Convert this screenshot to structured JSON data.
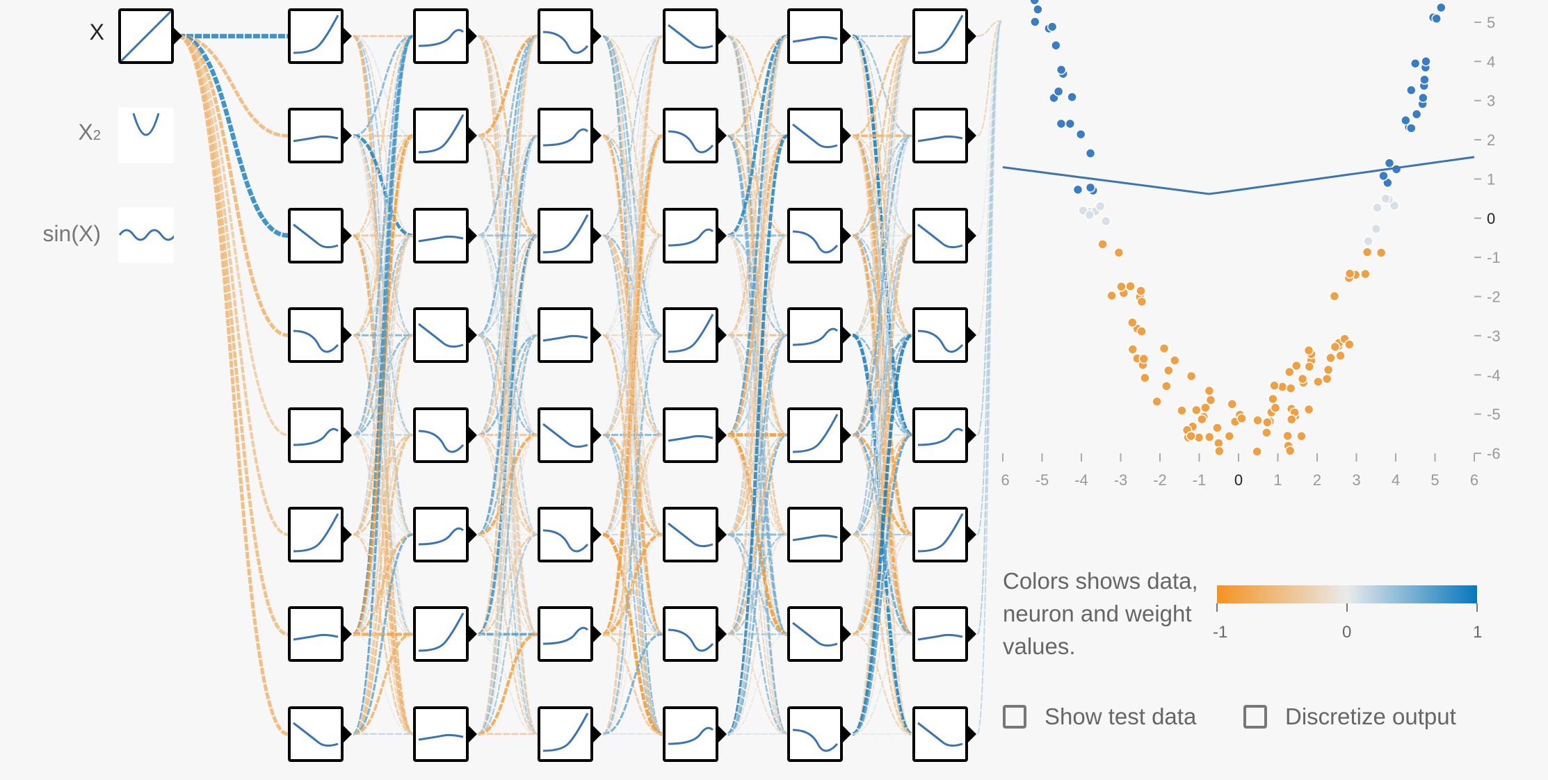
{
  "features": [
    {
      "label": "X",
      "active": true,
      "icon": "linear-icon"
    },
    {
      "label": "X",
      "sup": "2",
      "active": false,
      "icon": "parabola-icon"
    },
    {
      "label": "sin(X)",
      "active": false,
      "icon": "sine-icon"
    }
  ],
  "network": {
    "layers": 6,
    "neurons_per_layer": 8
  },
  "output_plot": {
    "x_ticks": [
      "-6",
      "-5",
      "-4",
      "-3",
      "-2",
      "-1",
      "0",
      "1",
      "2",
      "3",
      "4",
      "5",
      "6"
    ],
    "y_ticks": [
      "5",
      "4",
      "3",
      "2",
      "1",
      "0",
      "-1",
      "-2",
      "-3",
      "-4",
      "-5",
      "-6"
    ],
    "x_range": [
      -6,
      6
    ],
    "y_range": [
      -6,
      5.5
    ]
  },
  "legend": {
    "text": "Colors shows data, neuron and weight values.",
    "scale_min": "-1",
    "scale_mid": "0",
    "scale_max": "1",
    "colors": {
      "negative": "#f59322",
      "neutral": "#e8eaeb",
      "positive": "#0877bd"
    }
  },
  "options": {
    "show_test_data": "Show test data",
    "discretize_output": "Discretize output"
  }
}
